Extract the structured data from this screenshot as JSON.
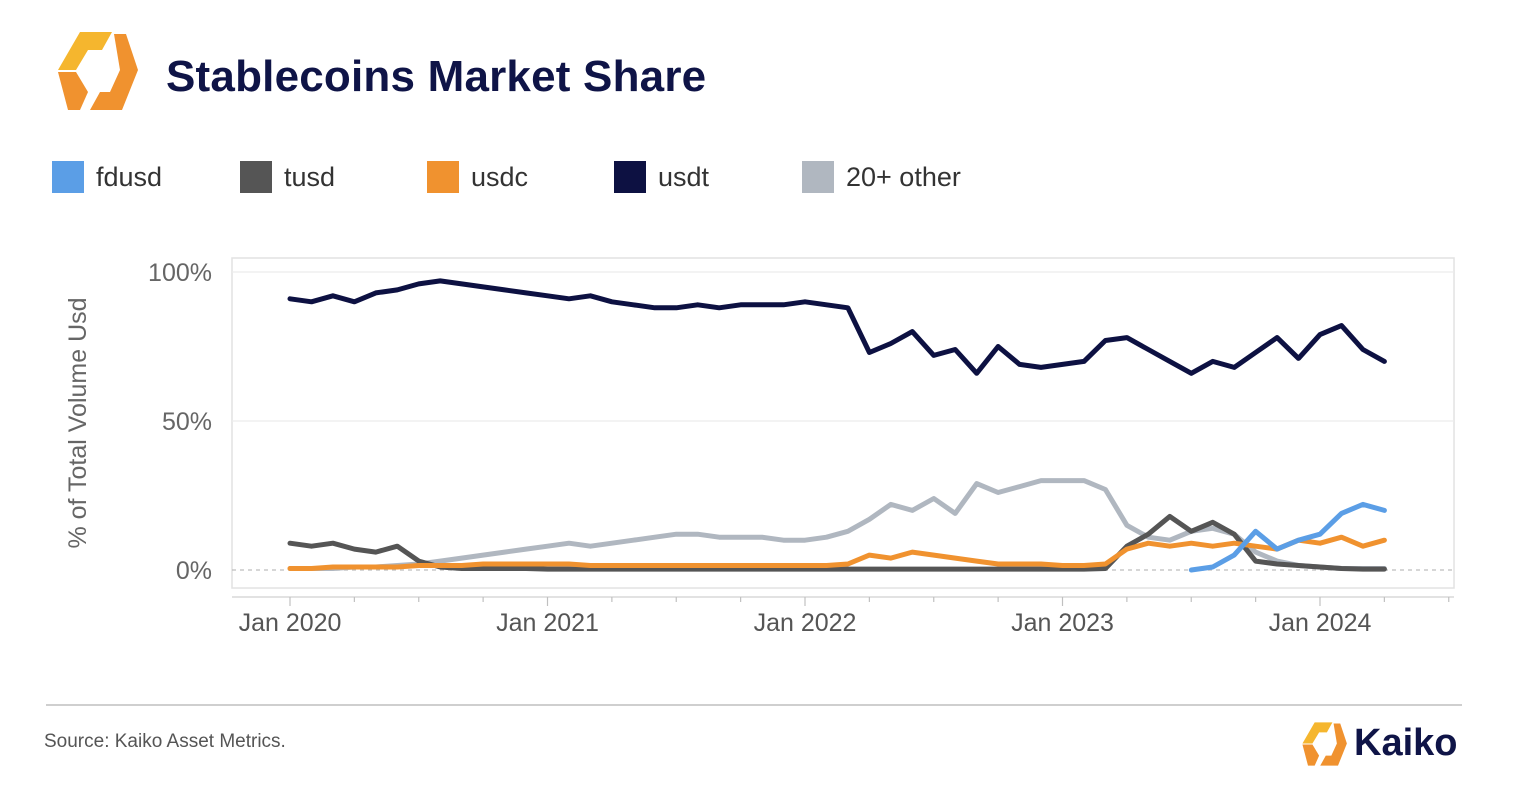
{
  "header": {
    "title": "Stablecoins Market Share",
    "logo_icon": "kaiko-logo-icon"
  },
  "footer": {
    "source": "Source: Kaiko Asset Metrics.",
    "brand_name": "Kaiko",
    "brand_icon": "kaiko-logo-icon"
  },
  "colors": {
    "fdusd": "#5b9ee6",
    "tusd": "#555555",
    "usdc": "#f0922f",
    "usdt": "#0d1142",
    "other": "#b0b7c0",
    "title": "#0f1447",
    "logo_orange": "#f0922f",
    "logo_yellow": "#f5b62e"
  },
  "chart_data": {
    "type": "line",
    "title": "Stablecoins Market Share",
    "ylabel": "% of Total Volume Usd",
    "xlabel": "",
    "ylim": [
      0,
      100
    ],
    "y_ticks": [
      "0%",
      "50%",
      "100%"
    ],
    "x_ticks": [
      "Jan 2020",
      "Jan 2021",
      "Jan 2022",
      "Jan 2023",
      "Jan 2024"
    ],
    "grid": "horizontal",
    "legend_position": "top-left",
    "legend": [
      "fdusd",
      "tusd",
      "usdc",
      "usdt",
      "20+ other"
    ],
    "series": [
      {
        "name": "usdt",
        "x": [
          "2020-01",
          "2020-02",
          "2020-03",
          "2020-04",
          "2020-05",
          "2020-06",
          "2020-07",
          "2020-08",
          "2020-09",
          "2020-10",
          "2020-11",
          "2020-12",
          "2021-01",
          "2021-02",
          "2021-03",
          "2021-04",
          "2021-05",
          "2021-06",
          "2021-07",
          "2021-08",
          "2021-09",
          "2021-10",
          "2021-11",
          "2021-12",
          "2022-01",
          "2022-02",
          "2022-03",
          "2022-04",
          "2022-05",
          "2022-06",
          "2022-07",
          "2022-08",
          "2022-09",
          "2022-10",
          "2022-11",
          "2022-12",
          "2023-01",
          "2023-02",
          "2023-03",
          "2023-04",
          "2023-05",
          "2023-06",
          "2023-07",
          "2023-08",
          "2023-09",
          "2023-10",
          "2023-11",
          "2023-12",
          "2024-01",
          "2024-02",
          "2024-03",
          "2024-04"
        ],
        "values": [
          91,
          90,
          92,
          90,
          93,
          94,
          96,
          97,
          96,
          95,
          94,
          93,
          92,
          91,
          92,
          90,
          89,
          88,
          88,
          89,
          88,
          89,
          89,
          89,
          90,
          89,
          88,
          73,
          76,
          80,
          72,
          74,
          66,
          75,
          69,
          68,
          69,
          70,
          77,
          78,
          74,
          70,
          66,
          70,
          68,
          73,
          78,
          71,
          79,
          82,
          74,
          70
        ]
      },
      {
        "name": "20+ other",
        "x": [
          "2020-01",
          "2020-02",
          "2020-03",
          "2020-04",
          "2020-05",
          "2020-06",
          "2020-07",
          "2020-08",
          "2020-09",
          "2020-10",
          "2020-11",
          "2020-12",
          "2021-01",
          "2021-02",
          "2021-03",
          "2021-04",
          "2021-05",
          "2021-06",
          "2021-07",
          "2021-08",
          "2021-09",
          "2021-10",
          "2021-11",
          "2021-12",
          "2022-01",
          "2022-02",
          "2022-03",
          "2022-04",
          "2022-05",
          "2022-06",
          "2022-07",
          "2022-08",
          "2022-09",
          "2022-10",
          "2022-11",
          "2022-12",
          "2023-01",
          "2023-02",
          "2023-03",
          "2023-04",
          "2023-05",
          "2023-06",
          "2023-07",
          "2023-08",
          "2023-09",
          "2023-10",
          "2023-11",
          "2023-12",
          "2024-01",
          "2024-02",
          "2024-03",
          "2024-04"
        ],
        "values": [
          0.5,
          0.5,
          0.5,
          1,
          1,
          1.5,
          2,
          3,
          4,
          5,
          6,
          7,
          8,
          9,
          8,
          9,
          10,
          11,
          12,
          12,
          11,
          11,
          11,
          10,
          10,
          11,
          13,
          17,
          22,
          20,
          24,
          19,
          29,
          26,
          28,
          30,
          30,
          30,
          27,
          15,
          11,
          10,
          13,
          14,
          12,
          6,
          3,
          1.5,
          1,
          0.5,
          0.5,
          0.5
        ]
      },
      {
        "name": "tusd",
        "x": [
          "2020-01",
          "2020-02",
          "2020-03",
          "2020-04",
          "2020-05",
          "2020-06",
          "2020-07",
          "2020-08",
          "2020-09",
          "2020-10",
          "2020-11",
          "2020-12",
          "2021-01",
          "2021-02",
          "2021-03",
          "2021-04",
          "2021-05",
          "2021-06",
          "2021-07",
          "2021-08",
          "2021-09",
          "2021-10",
          "2021-11",
          "2021-12",
          "2022-01",
          "2022-02",
          "2022-03",
          "2022-04",
          "2022-05",
          "2022-06",
          "2022-07",
          "2022-08",
          "2022-09",
          "2022-10",
          "2022-11",
          "2022-12",
          "2023-01",
          "2023-02",
          "2023-03",
          "2023-04",
          "2023-05",
          "2023-06",
          "2023-07",
          "2023-08",
          "2023-09",
          "2023-10",
          "2023-11",
          "2023-12",
          "2024-01",
          "2024-02",
          "2024-03",
          "2024-04"
        ],
        "values": [
          9,
          8,
          9,
          7,
          6,
          8,
          3,
          1,
          0.5,
          0.5,
          0.5,
          0.5,
          0.3,
          0.3,
          0.3,
          0.3,
          0.3,
          0.3,
          0.3,
          0.3,
          0.3,
          0.3,
          0.3,
          0.3,
          0.3,
          0.3,
          0.3,
          0.3,
          0.3,
          0.3,
          0.3,
          0.3,
          0.3,
          0.3,
          0.3,
          0.3,
          0.3,
          0.3,
          0.5,
          8,
          12,
          18,
          13,
          16,
          12,
          3,
          2,
          1.5,
          1,
          0.5,
          0.3,
          0.3
        ]
      },
      {
        "name": "usdc",
        "x": [
          "2020-01",
          "2020-02",
          "2020-03",
          "2020-04",
          "2020-05",
          "2020-06",
          "2020-07",
          "2020-08",
          "2020-09",
          "2020-10",
          "2020-11",
          "2020-12",
          "2021-01",
          "2021-02",
          "2021-03",
          "2021-04",
          "2021-05",
          "2021-06",
          "2021-07",
          "2021-08",
          "2021-09",
          "2021-10",
          "2021-11",
          "2021-12",
          "2022-01",
          "2022-02",
          "2022-03",
          "2022-04",
          "2022-05",
          "2022-06",
          "2022-07",
          "2022-08",
          "2022-09",
          "2022-10",
          "2022-11",
          "2022-12",
          "2023-01",
          "2023-02",
          "2023-03",
          "2023-04",
          "2023-05",
          "2023-06",
          "2023-07",
          "2023-08",
          "2023-09",
          "2023-10",
          "2023-11",
          "2023-12",
          "2024-01",
          "2024-02",
          "2024-03",
          "2024-04"
        ],
        "values": [
          0.5,
          0.5,
          1,
          1,
          1,
          1,
          1.5,
          1.5,
          1.5,
          2,
          2,
          2,
          2,
          2,
          1.5,
          1.5,
          1.5,
          1.5,
          1.5,
          1.5,
          1.5,
          1.5,
          1.5,
          1.5,
          1.5,
          1.5,
          2,
          5,
          4,
          6,
          5,
          4,
          3,
          2,
          2,
          2,
          1.5,
          1.5,
          2,
          7,
          9,
          8,
          9,
          8,
          9,
          8,
          7,
          10,
          9,
          11,
          8,
          10
        ]
      },
      {
        "name": "fdusd",
        "x": [
          "2023-07",
          "2023-08",
          "2023-09",
          "2023-10",
          "2023-11",
          "2023-12",
          "2024-01",
          "2024-02",
          "2024-03",
          "2024-04"
        ],
        "values": [
          0,
          1,
          5,
          13,
          7,
          10,
          12,
          19,
          22,
          20
        ]
      }
    ]
  }
}
